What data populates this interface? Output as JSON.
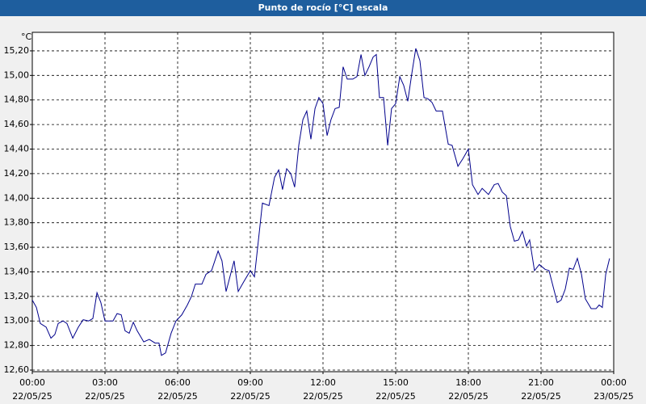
{
  "chart_data": {
    "type": "line",
    "title": "Punto de rocío [°C] escala",
    "ylabel": "°C",
    "xlim": [
      0,
      24
    ],
    "ylim": [
      12.587,
      15.351
    ],
    "grid": true,
    "xticks": [
      {
        "value": 0,
        "label": [
          "00:00",
          "22/05/25"
        ]
      },
      {
        "value": 3,
        "label": [
          "03:00",
          "22/05/25"
        ]
      },
      {
        "value": 6,
        "label": [
          "06:00",
          "22/05/25"
        ]
      },
      {
        "value": 9,
        "label": [
          "09:00",
          "22/05/25"
        ]
      },
      {
        "value": 12,
        "label": [
          "12:00",
          "22/05/25"
        ]
      },
      {
        "value": 15,
        "label": [
          "15:00",
          "22/05/25"
        ]
      },
      {
        "value": 18,
        "label": [
          "18:00",
          "22/05/25"
        ]
      },
      {
        "value": 21,
        "label": [
          "21:00",
          "22/05/25"
        ]
      },
      {
        "value": 24,
        "label": [
          "00:00",
          "23/05/25"
        ]
      }
    ],
    "yticks": [
      {
        "value": 12.6,
        "label": "12,60"
      },
      {
        "value": 12.8,
        "label": "12,80"
      },
      {
        "value": 13.0,
        "label": "13,00"
      },
      {
        "value": 13.2,
        "label": "13,20"
      },
      {
        "value": 13.4,
        "label": "13,40"
      },
      {
        "value": 13.6,
        "label": "13,60"
      },
      {
        "value": 13.8,
        "label": "13,80"
      },
      {
        "value": 14.0,
        "label": "14,00"
      },
      {
        "value": 14.2,
        "label": "14,20"
      },
      {
        "value": 14.4,
        "label": "14,40"
      },
      {
        "value": 14.6,
        "label": "14,60"
      },
      {
        "value": 14.8,
        "label": "14,80"
      },
      {
        "value": 15.0,
        "label": "15,00"
      },
      {
        "value": 15.2,
        "label": "15,20"
      }
    ],
    "x": [
      0,
      0.17,
      0.33,
      0.57,
      0.77,
      0.93,
      1.07,
      1.27,
      1.43,
      1.67,
      1.9,
      2.1,
      2.33,
      2.5,
      2.67,
      2.83,
      3.0,
      3.33,
      3.5,
      3.67,
      3.83,
      4.0,
      4.17,
      4.33,
      4.6,
      4.83,
      5.07,
      5.23,
      5.33,
      5.5,
      5.73,
      5.93,
      6.17,
      6.4,
      6.57,
      6.73,
      7.0,
      7.17,
      7.4,
      7.67,
      7.83,
      8.0,
      8.33,
      8.5,
      8.73,
      9.0,
      9.17,
      9.33,
      9.5,
      9.77,
      10.0,
      10.17,
      10.33,
      10.5,
      10.67,
      10.83,
      11.0,
      11.17,
      11.33,
      11.5,
      11.67,
      11.83,
      12.0,
      12.17,
      12.33,
      12.5,
      12.67,
      12.83,
      13.0,
      13.23,
      13.4,
      13.57,
      13.73,
      13.9,
      14.07,
      14.2,
      14.33,
      14.5,
      14.67,
      14.83,
      15.0,
      15.17,
      15.33,
      15.5,
      15.67,
      15.83,
      16.0,
      16.17,
      16.33,
      16.5,
      16.67,
      16.93,
      17.17,
      17.33,
      17.57,
      17.77,
      18.0,
      18.17,
      18.4,
      18.57,
      18.83,
      19.07,
      19.23,
      19.4,
      19.57,
      19.73,
      19.9,
      20.07,
      20.23,
      20.4,
      20.53,
      20.73,
      20.93,
      21.17,
      21.33,
      21.5,
      21.67,
      21.83,
      22.0,
      22.17,
      22.33,
      22.5,
      22.67,
      22.83,
      23.07,
      23.27,
      23.4,
      23.53,
      23.67,
      23.83
    ],
    "series": [
      {
        "color": "#00008b",
        "values": [
          13.17,
          13.11,
          12.98,
          12.95,
          12.86,
          12.89,
          12.98,
          13.0,
          12.98,
          12.86,
          12.95,
          13.01,
          13.0,
          13.02,
          13.23,
          13.15,
          13.0,
          13.0,
          13.06,
          13.05,
          12.92,
          12.9,
          12.99,
          12.92,
          12.83,
          12.85,
          12.82,
          12.82,
          12.72,
          12.74,
          12.9,
          13.0,
          13.05,
          13.13,
          13.2,
          13.3,
          13.3,
          13.38,
          13.41,
          13.57,
          13.49,
          13.24,
          13.49,
          13.24,
          13.32,
          13.41,
          13.36,
          13.65,
          13.96,
          13.94,
          14.17,
          14.23,
          14.07,
          14.24,
          14.2,
          14.09,
          14.43,
          14.64,
          14.71,
          14.48,
          14.73,
          14.82,
          14.77,
          14.51,
          14.64,
          14.73,
          14.74,
          15.07,
          14.97,
          14.97,
          14.99,
          15.17,
          15.0,
          15.07,
          15.15,
          15.17,
          14.82,
          14.82,
          14.43,
          14.73,
          14.77,
          14.99,
          14.92,
          14.79,
          15.02,
          15.22,
          15.12,
          14.82,
          14.81,
          14.78,
          14.71,
          14.71,
          14.44,
          14.43,
          14.26,
          14.32,
          14.4,
          14.11,
          14.03,
          14.08,
          14.03,
          14.11,
          14.12,
          14.05,
          14.02,
          13.77,
          13.65,
          13.66,
          13.73,
          13.61,
          13.66,
          13.41,
          13.46,
          13.42,
          13.41,
          13.28,
          13.15,
          13.17,
          13.26,
          13.43,
          13.42,
          13.51,
          13.38,
          13.18,
          13.1,
          13.1,
          13.13,
          13.11,
          13.38,
          13.51
        ]
      }
    ]
  }
}
